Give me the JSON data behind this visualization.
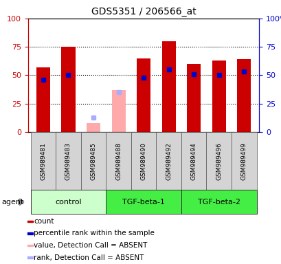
{
  "title": "GDS5351 / 206566_at",
  "samples": [
    "GSM989481",
    "GSM989483",
    "GSM989485",
    "GSM989488",
    "GSM989490",
    "GSM989492",
    "GSM989494",
    "GSM989496",
    "GSM989499"
  ],
  "count_values": [
    57,
    75,
    8,
    37,
    65,
    80,
    60,
    63,
    64
  ],
  "rank_values": [
    46,
    50,
    null,
    null,
    48,
    55,
    51,
    50,
    53
  ],
  "absent_value_values": [
    null,
    null,
    8,
    37,
    null,
    null,
    null,
    null,
    null
  ],
  "absent_rank_values": [
    null,
    null,
    13,
    35,
    null,
    null,
    null,
    null,
    null
  ],
  "detection_call": [
    "P",
    "P",
    "A",
    "A",
    "P",
    "P",
    "P",
    "P",
    "P"
  ],
  "groups": [
    {
      "name": "control",
      "start": 0,
      "end": 3,
      "color": "#ccffcc"
    },
    {
      "name": "TGF-beta-1",
      "start": 3,
      "end": 6,
      "color": "#44ee44"
    },
    {
      "name": "TGF-beta-2",
      "start": 6,
      "end": 9,
      "color": "#44ee44"
    }
  ],
  "ylim": [
    0,
    100
  ],
  "grid_lines": [
    25,
    50,
    75
  ],
  "left_axis_color": "#cc0000",
  "right_axis_color": "#0000cc",
  "bar_color_present": "#cc0000",
  "bar_color_absent": "#ffaaaa",
  "rank_color_present": "#0000cc",
  "rank_color_absent": "#aaaaff",
  "bar_width": 0.55,
  "legend_items": [
    {
      "label": "count",
      "color": "#cc0000"
    },
    {
      "label": "percentile rank within the sample",
      "color": "#0000cc"
    },
    {
      "label": "value, Detection Call = ABSENT",
      "color": "#ffaaaa"
    },
    {
      "label": "rank, Detection Call = ABSENT",
      "color": "#aaaaff"
    }
  ]
}
